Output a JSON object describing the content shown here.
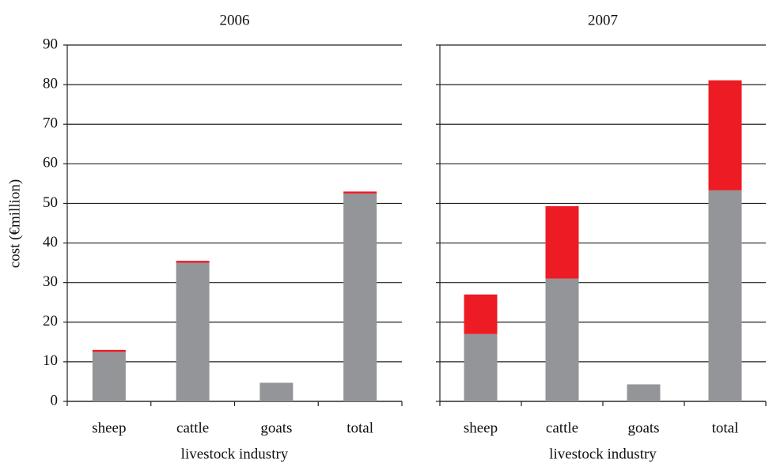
{
  "chart_data": [
    {
      "type": "bar",
      "stacked": true,
      "title": "2006",
      "x_label": "livestock industry",
      "y_label": "cost (€million)",
      "categories": [
        "sheep",
        "cattle",
        "goats",
        "total"
      ],
      "series": [
        {
          "color": "#939598",
          "values": [
            12.5,
            35,
            4.7,
            52.5
          ]
        },
        {
          "color": "#ed1c24",
          "values": [
            0.5,
            0.5,
            0,
            0.5
          ]
        }
      ],
      "ylim": [
        0,
        90
      ],
      "yticks": [
        0,
        10,
        20,
        30,
        40,
        50,
        60,
        70,
        80,
        90
      ],
      "grid": true,
      "show_ytick_labels": true
    },
    {
      "type": "bar",
      "stacked": true,
      "title": "2007",
      "x_label": "livestock industry",
      "categories": [
        "sheep",
        "cattle",
        "goats",
        "total"
      ],
      "series": [
        {
          "color": "#939598",
          "values": [
            17,
            31,
            4.3,
            53.3
          ]
        },
        {
          "color": "#ed1c24",
          "values": [
            10,
            18.3,
            0,
            27.8
          ]
        }
      ],
      "ylim": [
        0,
        90
      ],
      "yticks": [
        0,
        10,
        20,
        30,
        40,
        50,
        60,
        70,
        80,
        90
      ],
      "grid": true,
      "show_ytick_labels": false
    }
  ]
}
